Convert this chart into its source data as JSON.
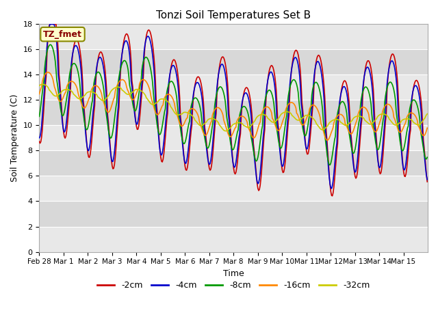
{
  "title": "Tonzi Soil Temperatures Set B",
  "xlabel": "Time",
  "ylabel": "Soil Temperature (C)",
  "annotation_label": "TZ_fmet",
  "ylim": [
    0,
    18
  ],
  "yticks": [
    0,
    2,
    4,
    6,
    8,
    10,
    12,
    14,
    16,
    18
  ],
  "series_colors": {
    "-2cm": "#cc0000",
    "-4cm": "#0000cc",
    "-8cm": "#009900",
    "-16cm": "#ff8800",
    "-32cm": "#cccc00"
  },
  "series_linewidth": 1.2,
  "background_color": "#ffffff",
  "plot_bg_color_light": "#e8e8e8",
  "plot_bg_color_dark": "#d0d0d0",
  "grid_color": "#ffffff",
  "xtick_labels": [
    "Feb 28",
    "Mar 1",
    "Mar 2",
    "Mar 3",
    "Mar 4",
    "Mar 5",
    "Mar 6",
    "Mar 7",
    "Mar 8",
    "Mar 9",
    "Mar 10",
    "Mar 11",
    "Mar 12",
    "Mar 13",
    "Mar 14",
    "Mar 15"
  ],
  "legend_entries": [
    "-2cm",
    "-4cm",
    "-8cm",
    "-16cm",
    "-32cm"
  ]
}
